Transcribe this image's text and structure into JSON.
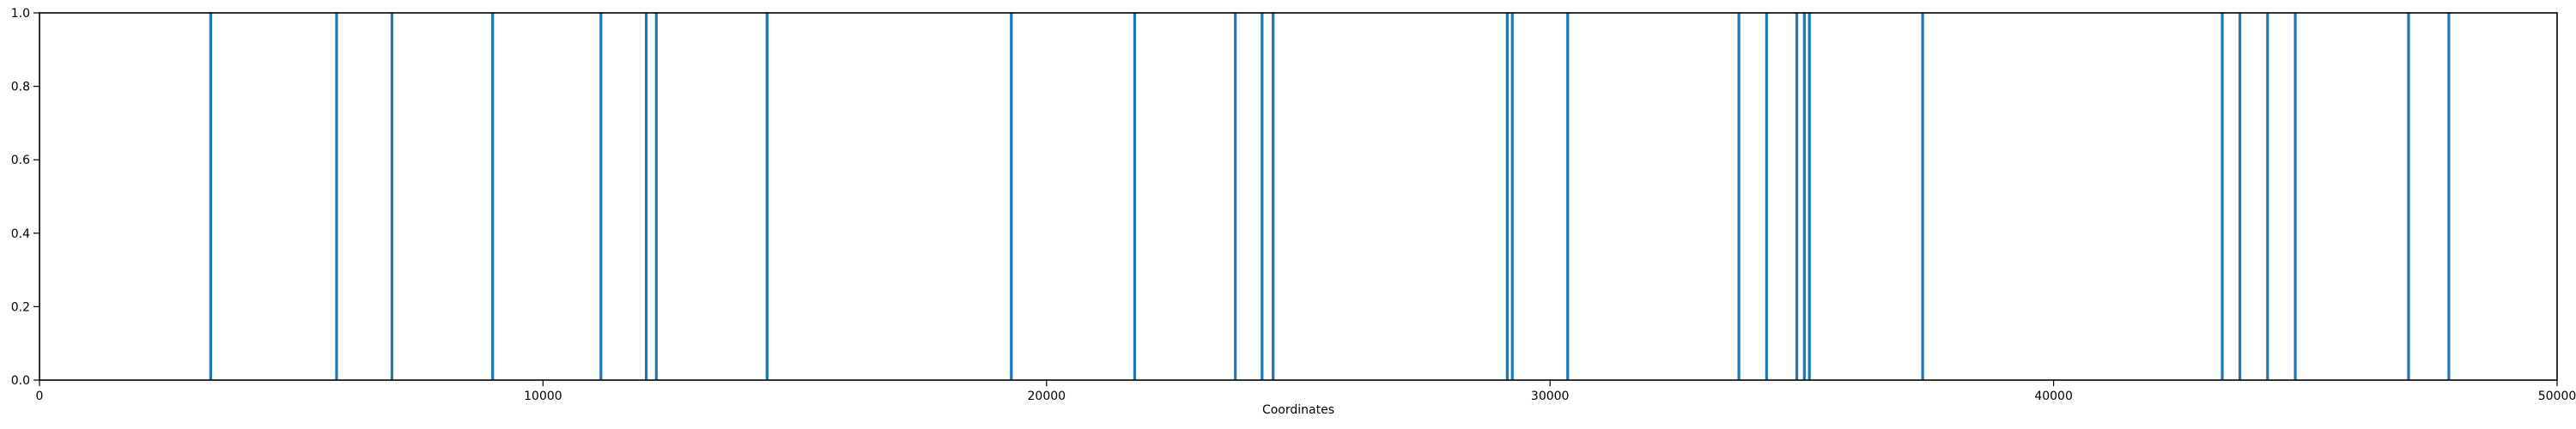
{
  "chart_data": {
    "type": "bar",
    "title": "",
    "xlabel": "Coordinates",
    "ylabel": "",
    "xlim": [
      0,
      50000
    ],
    "ylim": [
      0.0,
      1.0
    ],
    "grid": false,
    "bar_color": "#1f77b4",
    "x_ticks": [
      {
        "value": 0,
        "label": "0"
      },
      {
        "value": 10000,
        "label": "10000"
      },
      {
        "value": 20000,
        "label": "20000"
      },
      {
        "value": 30000,
        "label": "30000"
      },
      {
        "value": 40000,
        "label": "40000"
      },
      {
        "value": 50000,
        "label": "50000"
      }
    ],
    "y_ticks": [
      {
        "value": 0.0,
        "label": "0.0"
      },
      {
        "value": 0.2,
        "label": "0.2"
      },
      {
        "value": 0.4,
        "label": "0.4"
      },
      {
        "value": 0.6,
        "label": "0.6"
      },
      {
        "value": 0.8,
        "label": "0.8"
      },
      {
        "value": 1.0,
        "label": "1.0"
      }
    ],
    "x": [
      3400,
      5900,
      7000,
      9000,
      11150,
      12050,
      12250,
      14450,
      19300,
      21750,
      23750,
      24280,
      24500,
      29150,
      29250,
      30350,
      33750,
      34300,
      34900,
      35050,
      35150,
      37400,
      43350,
      43700,
      44250,
      44800,
      47050,
      47850
    ],
    "values": [
      1,
      1,
      1,
      1,
      1,
      1,
      1,
      1,
      1,
      1,
      1,
      1,
      1,
      1,
      1,
      1,
      1,
      1,
      1,
      1,
      1,
      1,
      1,
      1,
      1,
      1,
      1,
      1
    ]
  }
}
